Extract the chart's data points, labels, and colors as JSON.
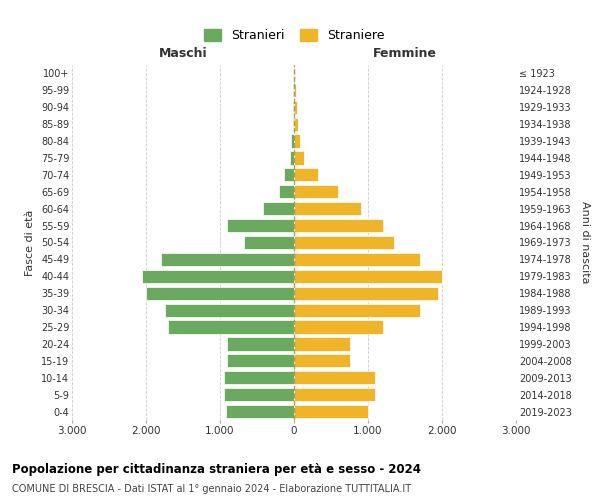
{
  "age_groups": [
    "0-4",
    "5-9",
    "10-14",
    "15-19",
    "20-24",
    "25-29",
    "30-34",
    "35-39",
    "40-44",
    "45-49",
    "50-54",
    "55-59",
    "60-64",
    "65-69",
    "70-74",
    "75-79",
    "80-84",
    "85-89",
    "90-94",
    "95-99",
    "100+"
  ],
  "birth_years": [
    "2019-2023",
    "2014-2018",
    "2009-2013",
    "2004-2008",
    "1999-2003",
    "1994-1998",
    "1989-1993",
    "1984-1988",
    "1979-1983",
    "1974-1978",
    "1969-1973",
    "1964-1968",
    "1959-1963",
    "1954-1958",
    "1949-1953",
    "1944-1948",
    "1939-1943",
    "1934-1938",
    "1929-1933",
    "1924-1928",
    "≤ 1923"
  ],
  "males": [
    920,
    950,
    950,
    900,
    900,
    1700,
    1750,
    2000,
    2050,
    1800,
    680,
    900,
    420,
    200,
    130,
    60,
    35,
    20,
    15,
    8,
    5
  ],
  "females": [
    1000,
    1100,
    1100,
    750,
    750,
    1200,
    1700,
    1950,
    2000,
    1700,
    1350,
    1200,
    900,
    600,
    320,
    130,
    80,
    55,
    40,
    25,
    20
  ],
  "male_color": "#6aaa5e",
  "female_color": "#f0b429",
  "title": "Popolazione per cittadinanza straniera per età e sesso - 2024",
  "subtitle": "COMUNE DI BRESCIA - Dati ISTAT al 1° gennaio 2024 - Elaborazione TUTTITALIA.IT",
  "xlabel_left": "Maschi",
  "xlabel_right": "Femmine",
  "ylabel_left": "Fasce di età",
  "ylabel_right": "Anni di nascita",
  "legend_male": "Stranieri",
  "legend_female": "Straniere",
  "xlim": 3000,
  "xtick_vals": [
    -3000,
    -2000,
    -1000,
    0,
    1000,
    2000,
    3000
  ],
  "xtick_labels": [
    "3.000",
    "2.000",
    "1.000",
    "0",
    "1.000",
    "2.000",
    "3.000"
  ],
  "bg_color": "#ffffff",
  "grid_color": "#cccccc"
}
